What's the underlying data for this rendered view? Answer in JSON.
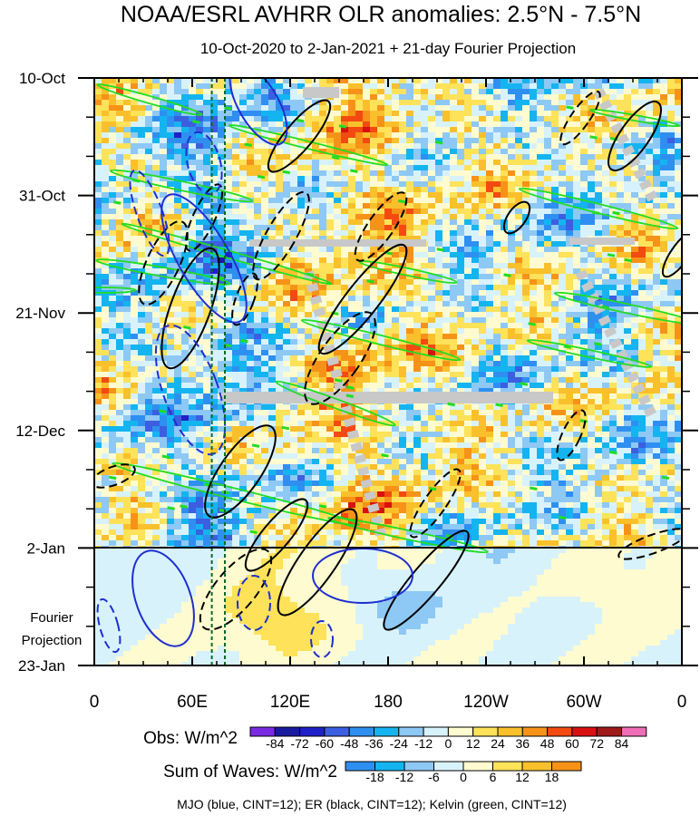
{
  "chart_data": {
    "type": "heatmap",
    "title": "NOAA/ESRL AVHRR OLR anomalies: 2.5°N - 7.5°N",
    "subtitle": "10-Oct-2020 to 2-Jan-2021 + 21-day Fourier Projection",
    "x_axis": {
      "ticks": [
        "0",
        "60E",
        "120E",
        "180",
        "120W",
        "60W",
        "0"
      ],
      "tick_values_deg": [
        0,
        60,
        120,
        180,
        240,
        300,
        360
      ],
      "range_deg": [
        0,
        360
      ]
    },
    "y_axis": {
      "ticks": [
        "10-Oct",
        "31-Oct",
        "21-Nov",
        "12-Dec",
        "2-Jan",
        "23-Jan"
      ],
      "range": [
        "10-Oct",
        "23-Jan"
      ],
      "projection_label_line1": "Fourier",
      "projection_label_line2": "Projection"
    },
    "projection_start": "2-Jan",
    "vertical_reference_lines_deg": [
      72,
      80
    ],
    "colorbar_obs": {
      "label": "Obs: W/m^2",
      "levels": [
        "-84",
        "-72",
        "-60",
        "-48",
        "-36",
        "-24",
        "-12",
        "0",
        "12",
        "24",
        "36",
        "48",
        "60",
        "72",
        "84"
      ],
      "colors": [
        "#7a2be2",
        "#1a1a9e",
        "#2020c8",
        "#3b5fe0",
        "#2f8ff0",
        "#14b4f0",
        "#8ec8f4",
        "#d8f2fb",
        "#fffbd0",
        "#fde25a",
        "#f9c02c",
        "#f79218",
        "#f24a10",
        "#d81010",
        "#a01818",
        "#f06eb8"
      ]
    },
    "colorbar_waves": {
      "label": "Sum of Waves: W/m^2",
      "levels": [
        "-18",
        "-12",
        "-6",
        "0",
        "6",
        "12",
        "18"
      ],
      "colors": [
        "#2f8ff0",
        "#14b4f0",
        "#8ec8f4",
        "#d8f2fb",
        "#fffbd0",
        "#fde25a",
        "#f9c02c",
        "#f79218"
      ]
    },
    "contour_legend": "MJO (blue, CINT=12); ER (black, CINT=12); Kelvin (green, CINT=12)",
    "contour_colors": {
      "mjo": "#1f2fd0",
      "er": "#000000",
      "kelvin": "#22dd22",
      "reference": "#0a6b2a",
      "missing": "#c8c8c8"
    }
  }
}
